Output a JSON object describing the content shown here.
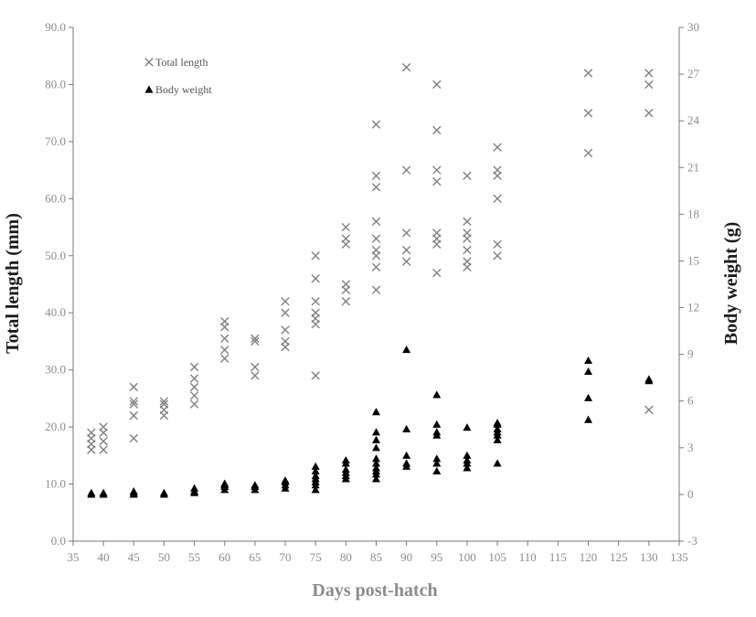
{
  "chart_data": {
    "type": "scatter",
    "xlabel": "Days post-hatch",
    "ylabel": "Total length (mm)",
    "y2label": "Body weight (g)",
    "xlim": [
      35,
      135
    ],
    "ylim": [
      0,
      90
    ],
    "y2lim": [
      -3,
      30
    ],
    "x_ticks": [
      "35",
      "40",
      "45",
      "50",
      "55",
      "60",
      "65",
      "70",
      "75",
      "80",
      "85",
      "90",
      "95",
      "100",
      "105",
      "110",
      "115",
      "120",
      "125",
      "130",
      "135"
    ],
    "y_ticks": [
      "0.0",
      "10.0",
      "20.0",
      "30.0",
      "40.0",
      "50.0",
      "60.0",
      "70.0",
      "80.0",
      "90.0"
    ],
    "y2_ticks": [
      "-3",
      "0",
      "3",
      "6",
      "9",
      "12",
      "15",
      "18",
      "21",
      "24",
      "27",
      "30"
    ],
    "grid": false,
    "legend_position": "top-left",
    "series": [
      {
        "name": "Total length",
        "axis": "left",
        "marker": "x",
        "color": "#808080",
        "points": [
          [
            38,
            16
          ],
          [
            38,
            17
          ],
          [
            38,
            18
          ],
          [
            38,
            19
          ],
          [
            40,
            16
          ],
          [
            40,
            17.5
          ],
          [
            40,
            19
          ],
          [
            40,
            20
          ],
          [
            45,
            18
          ],
          [
            45,
            22
          ],
          [
            45,
            24
          ],
          [
            45,
            24.5
          ],
          [
            45,
            27
          ],
          [
            50,
            22
          ],
          [
            50,
            23
          ],
          [
            50,
            24
          ],
          [
            50,
            24.5
          ],
          [
            55,
            24
          ],
          [
            55,
            25.5
          ],
          [
            55,
            27
          ],
          [
            55,
            28.5
          ],
          [
            55,
            30.5
          ],
          [
            60,
            32
          ],
          [
            60,
            33.5
          ],
          [
            60,
            35.5
          ],
          [
            60,
            37.5
          ],
          [
            60,
            38.5
          ],
          [
            65,
            29
          ],
          [
            65,
            30.5
          ],
          [
            65,
            35
          ],
          [
            65,
            35.5
          ],
          [
            70,
            34
          ],
          [
            70,
            35
          ],
          [
            70,
            37
          ],
          [
            70,
            40
          ],
          [
            70,
            42
          ],
          [
            75,
            29
          ],
          [
            75,
            38
          ],
          [
            75,
            39
          ],
          [
            75,
            40
          ],
          [
            75,
            42
          ],
          [
            75,
            46
          ],
          [
            75,
            50
          ],
          [
            80,
            42
          ],
          [
            80,
            44
          ],
          [
            80,
            45
          ],
          [
            80,
            52
          ],
          [
            80,
            53
          ],
          [
            80,
            55
          ],
          [
            85,
            44
          ],
          [
            85,
            48
          ],
          [
            85,
            50
          ],
          [
            85,
            51
          ],
          [
            85,
            53
          ],
          [
            85,
            56
          ],
          [
            85,
            62
          ],
          [
            85,
            64
          ],
          [
            85,
            73
          ],
          [
            90,
            49
          ],
          [
            90,
            51
          ],
          [
            90,
            54
          ],
          [
            90,
            65
          ],
          [
            90,
            83
          ],
          [
            95,
            47
          ],
          [
            95,
            52
          ],
          [
            95,
            53
          ],
          [
            95,
            54
          ],
          [
            95,
            63
          ],
          [
            95,
            65
          ],
          [
            95,
            72
          ],
          [
            95,
            80
          ],
          [
            100,
            48
          ],
          [
            100,
            49
          ],
          [
            100,
            51
          ],
          [
            100,
            53
          ],
          [
            100,
            54
          ],
          [
            100,
            56
          ],
          [
            100,
            64
          ],
          [
            105,
            50
          ],
          [
            105,
            52
          ],
          [
            105,
            60
          ],
          [
            105,
            64
          ],
          [
            105,
            65
          ],
          [
            105,
            69
          ],
          [
            120,
            68
          ],
          [
            120,
            75
          ],
          [
            120,
            82
          ],
          [
            130,
            23
          ],
          [
            130,
            75
          ],
          [
            130,
            80
          ],
          [
            130,
            82
          ]
        ]
      },
      {
        "name": "Body weight",
        "axis": "right",
        "marker": "triangle",
        "color": "#000000",
        "points": [
          [
            38,
            0
          ],
          [
            38,
            0.1
          ],
          [
            40,
            0
          ],
          [
            40,
            0.1
          ],
          [
            45,
            0
          ],
          [
            45,
            0.1
          ],
          [
            45,
            0.2
          ],
          [
            50,
            0
          ],
          [
            50,
            0.1
          ],
          [
            55,
            0.1
          ],
          [
            55,
            0.2
          ],
          [
            55,
            0.4
          ],
          [
            60,
            0.3
          ],
          [
            60,
            0.5
          ],
          [
            60,
            0.6
          ],
          [
            60,
            0.7
          ],
          [
            65,
            0.3
          ],
          [
            65,
            0.5
          ],
          [
            65,
            0.6
          ],
          [
            70,
            0.4
          ],
          [
            70,
            0.6
          ],
          [
            70,
            0.8
          ],
          [
            70,
            0.9
          ],
          [
            75,
            0.3
          ],
          [
            75,
            0.6
          ],
          [
            75,
            0.8
          ],
          [
            75,
            1.0
          ],
          [
            75,
            1.2
          ],
          [
            75,
            1.5
          ],
          [
            75,
            1.8
          ],
          [
            80,
            1.0
          ],
          [
            80,
            1.2
          ],
          [
            80,
            1.4
          ],
          [
            80,
            1.6
          ],
          [
            80,
            2.0
          ],
          [
            80,
            2.2
          ],
          [
            85,
            1.0
          ],
          [
            85,
            1.3
          ],
          [
            85,
            1.5
          ],
          [
            85,
            1.7
          ],
          [
            85,
            2.0
          ],
          [
            85,
            2.3
          ],
          [
            85,
            3.0
          ],
          [
            85,
            3.5
          ],
          [
            85,
            4.0
          ],
          [
            85,
            5.3
          ],
          [
            90,
            1.8
          ],
          [
            90,
            2.0
          ],
          [
            90,
            2.5
          ],
          [
            90,
            4.2
          ],
          [
            90,
            9.3
          ],
          [
            95,
            1.5
          ],
          [
            95,
            2.0
          ],
          [
            95,
            2.3
          ],
          [
            95,
            3.8
          ],
          [
            95,
            4.0
          ],
          [
            95,
            4.5
          ],
          [
            95,
            6.4
          ],
          [
            100,
            1.7
          ],
          [
            100,
            2.0
          ],
          [
            100,
            2.2
          ],
          [
            100,
            2.5
          ],
          [
            100,
            4.3
          ],
          [
            105,
            2.0
          ],
          [
            105,
            3.5
          ],
          [
            105,
            3.8
          ],
          [
            105,
            4.0
          ],
          [
            105,
            4.2
          ],
          [
            105,
            4.5
          ],
          [
            105,
            4.6
          ],
          [
            120,
            4.8
          ],
          [
            120,
            6.2
          ],
          [
            120,
            7.9
          ],
          [
            120,
            8.6
          ],
          [
            130,
            7.3
          ],
          [
            130,
            7.4
          ]
        ]
      }
    ]
  }
}
